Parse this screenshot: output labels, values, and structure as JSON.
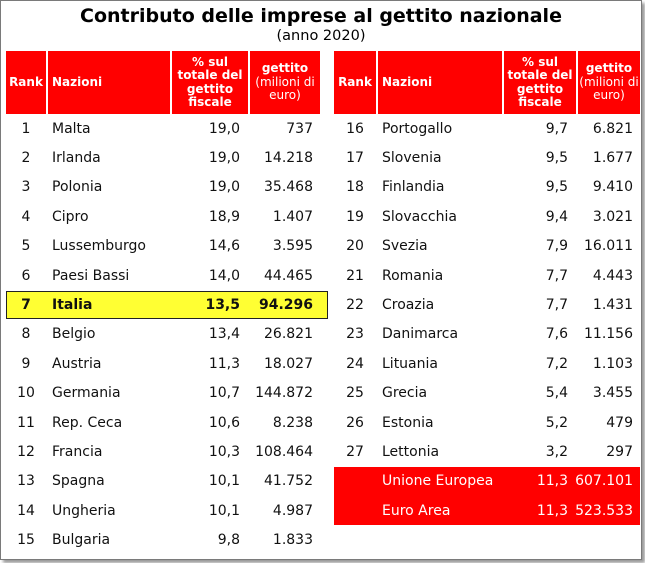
{
  "title": "Contributo delle imprese al gettito nazionale",
  "subtitle": "(anno 2020)",
  "headers": {
    "rank": "Rank",
    "nazioni": "Nazioni",
    "pct_line1": "% sul",
    "pct_line2": "totale del",
    "pct_line3": "gettito",
    "pct_line4": "fiscale",
    "gettito_line1": "gettito",
    "gettito_line2": "(milioni di",
    "gettito_line3": "euro)"
  },
  "left_rows": [
    {
      "rank": "1",
      "name": "Malta",
      "pct": "19,0",
      "val": "737"
    },
    {
      "rank": "2",
      "name": "Irlanda",
      "pct": "19,0",
      "val": "14.218"
    },
    {
      "rank": "3",
      "name": "Polonia",
      "pct": "19,0",
      "val": "35.468"
    },
    {
      "rank": "4",
      "name": "Cipro",
      "pct": "18,9",
      "val": "1.407"
    },
    {
      "rank": "5",
      "name": "Lussemburgo",
      "pct": "14,6",
      "val": "3.595"
    },
    {
      "rank": "6",
      "name": "Paesi Bassi",
      "pct": "14,0",
      "val": "44.465"
    },
    {
      "rank": "7",
      "name": "Italia",
      "pct": "13,5",
      "val": "94.296"
    },
    {
      "rank": "8",
      "name": "Belgio",
      "pct": "13,4",
      "val": "26.821"
    },
    {
      "rank": "9",
      "name": "Austria",
      "pct": "11,3",
      "val": "18.027"
    },
    {
      "rank": "10",
      "name": "Germania",
      "pct": "10,7",
      "val": "144.872"
    },
    {
      "rank": "11",
      "name": "Rep. Ceca",
      "pct": "10,6",
      "val": "8.238"
    },
    {
      "rank": "12",
      "name": "Francia",
      "pct": "10,3",
      "val": "108.464"
    },
    {
      "rank": "13",
      "name": "Spagna",
      "pct": "10,1",
      "val": "41.752"
    },
    {
      "rank": "14",
      "name": "Ungheria",
      "pct": "10,1",
      "val": "4.987"
    },
    {
      "rank": "15",
      "name": "Bulgaria",
      "pct": "9,8",
      "val": "1.833"
    }
  ],
  "right_rows": [
    {
      "rank": "16",
      "name": "Portogallo",
      "pct": "9,7",
      "val": "6.821"
    },
    {
      "rank": "17",
      "name": "Slovenia",
      "pct": "9,5",
      "val": "1.677"
    },
    {
      "rank": "18",
      "name": "Finlandia",
      "pct": "9,5",
      "val": "9.410"
    },
    {
      "rank": "19",
      "name": "Slovacchia",
      "pct": "9,4",
      "val": "3.021"
    },
    {
      "rank": "20",
      "name": "Svezia",
      "pct": "7,9",
      "val": "16.011"
    },
    {
      "rank": "21",
      "name": "Romania",
      "pct": "7,7",
      "val": "4.443"
    },
    {
      "rank": "22",
      "name": "Croazia",
      "pct": "7,7",
      "val": "1.431"
    },
    {
      "rank": "23",
      "name": "Danimarca",
      "pct": "7,6",
      "val": "11.156"
    },
    {
      "rank": "24",
      "name": "Lituania",
      "pct": "7,2",
      "val": "1.103"
    },
    {
      "rank": "25",
      "name": "Grecia",
      "pct": "5,4",
      "val": "3.455"
    },
    {
      "rank": "26",
      "name": "Estonia",
      "pct": "5,2",
      "val": "479"
    },
    {
      "rank": "27",
      "name": "Lettonia",
      "pct": "3,2",
      "val": "297"
    },
    {
      "rank": "",
      "name": "Unione Europea",
      "pct": "11,3",
      "val": "607.101"
    },
    {
      "rank": "",
      "name": "Euro Area",
      "pct": "11,3",
      "val": "523.533"
    }
  ],
  "colors": {
    "header_bg": "#ff0000",
    "highlight_bg": "#ffff33",
    "text": "#111111"
  }
}
